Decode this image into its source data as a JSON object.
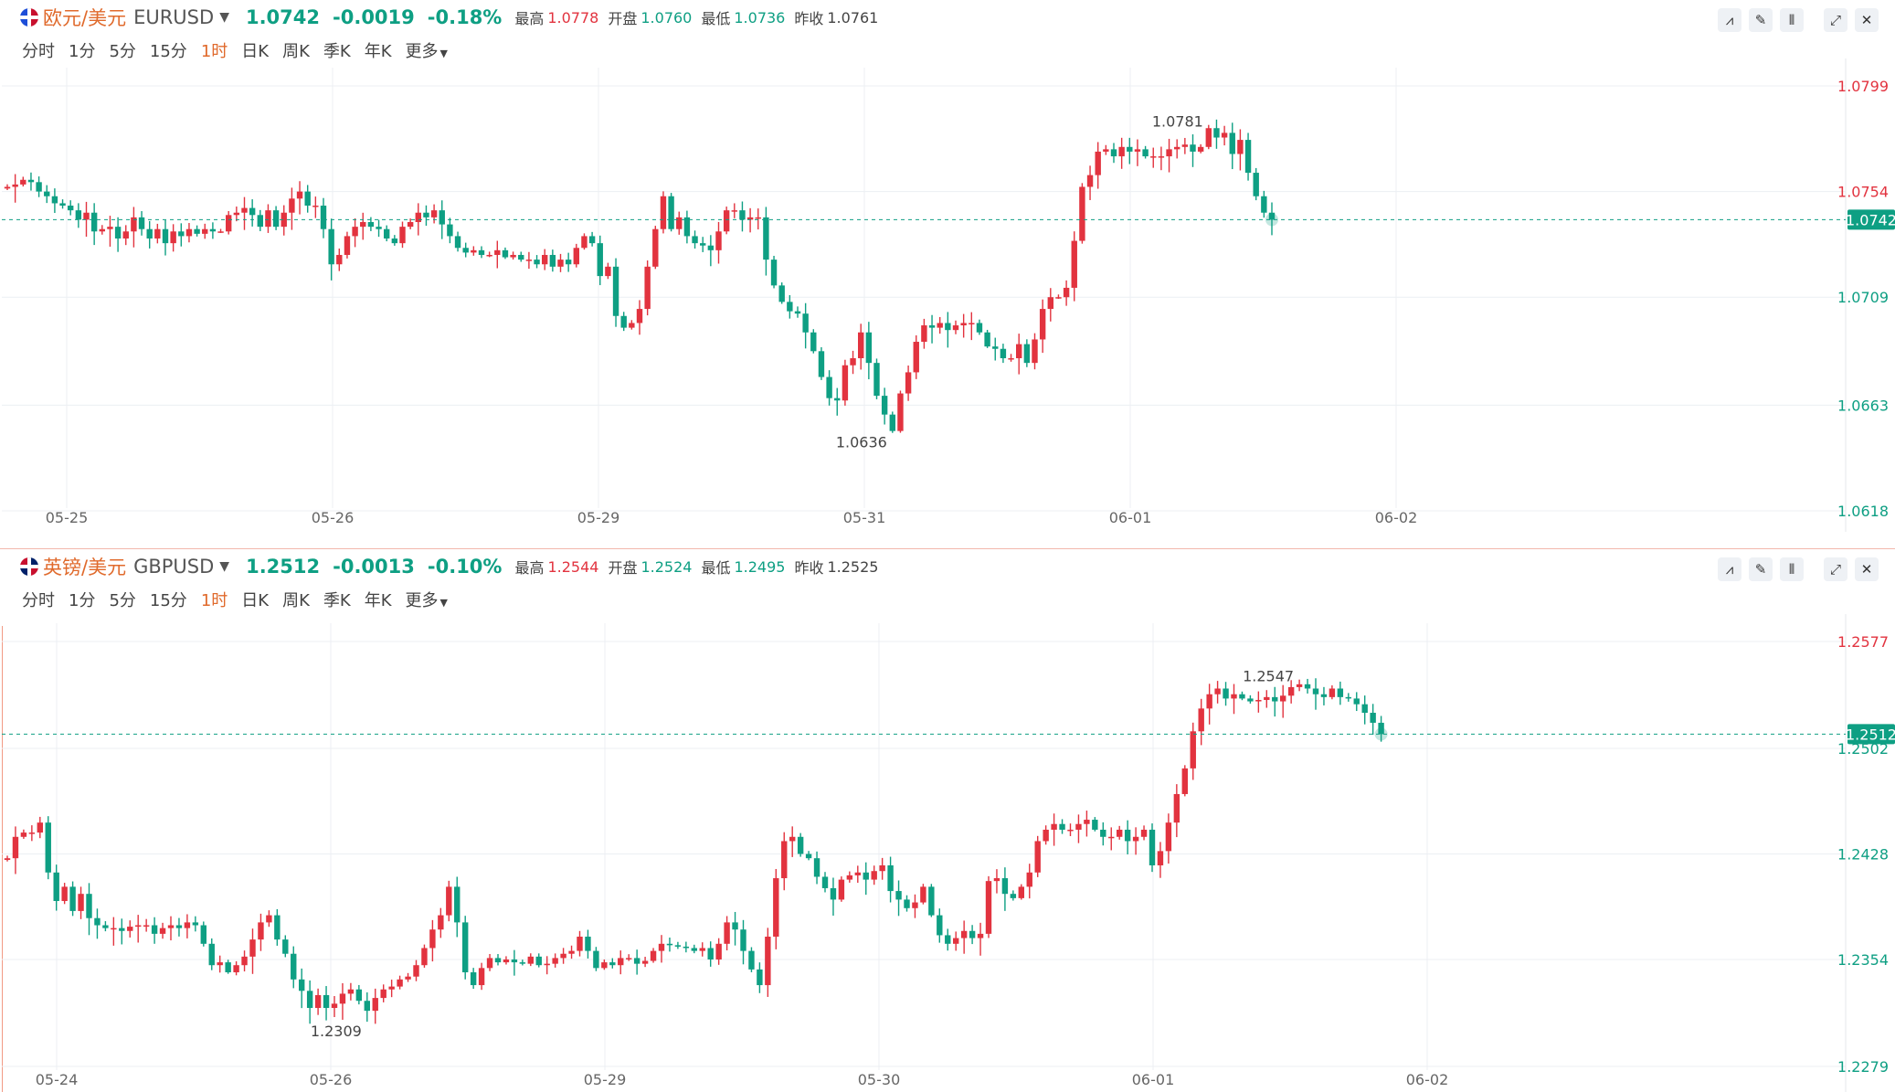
{
  "colors": {
    "up": "#e2333f",
    "down": "#0e9f83",
    "accent": "#e06a2c",
    "grid": "#eceff3",
    "current_line": "#0e9f83"
  },
  "panels": [
    {
      "flag": "eu-us-flag-icon",
      "pair_name": "欧元/美元",
      "symbol": "EURUSD",
      "price": "1.0742",
      "change": "-0.0019",
      "change_pct": "-0.18%",
      "stats": [
        {
          "label": "最高",
          "value": "1.0778",
          "tone": "red"
        },
        {
          "label": "开盘",
          "value": "1.0760",
          "tone": "green"
        },
        {
          "label": "最低",
          "value": "1.0736",
          "tone": "green"
        },
        {
          "label": "昨收",
          "value": "1.0761",
          "tone": "gray"
        }
      ],
      "timeframes": [
        "分时",
        "1分",
        "5分",
        "15分",
        "1时",
        "日K",
        "周K",
        "季K",
        "年K",
        "更多"
      ],
      "active_timeframe": "1时",
      "toolbar_icons": [
        "indicator-icon",
        "draw-icon",
        "candle-type-icon",
        "expand-icon",
        "close-icon"
      ]
    },
    {
      "flag": "gb-us-flag-icon",
      "pair_name": "英镑/美元",
      "symbol": "GBPUSD",
      "price": "1.2512",
      "change": "-0.0013",
      "change_pct": "-0.10%",
      "stats": [
        {
          "label": "最高",
          "value": "1.2544",
          "tone": "red"
        },
        {
          "label": "开盘",
          "value": "1.2524",
          "tone": "green"
        },
        {
          "label": "最低",
          "value": "1.2495",
          "tone": "green"
        },
        {
          "label": "昨收",
          "value": "1.2525",
          "tone": "gray"
        }
      ],
      "timeframes": [
        "分时",
        "1分",
        "5分",
        "15分",
        "1时",
        "日K",
        "周K",
        "季K",
        "年K",
        "更多"
      ],
      "active_timeframe": "1时",
      "toolbar_icons": [
        "indicator-icon",
        "draw-icon",
        "candle-type-icon",
        "expand-icon",
        "close-icon"
      ]
    }
  ],
  "chart_data": [
    {
      "type": "candlestick",
      "symbol": "EURUSD",
      "interval": "1h",
      "y_ticks": [
        "1.0799",
        "1.0754",
        "1.0709",
        "1.0663",
        "1.0618"
      ],
      "ylim": [
        1.0618,
        1.0799
      ],
      "x_ticks": [
        "05-25",
        "05-26",
        "05-29",
        "05-31",
        "06-01",
        "06-02"
      ],
      "current_price": "1.0742",
      "high_annotation": "1.0781",
      "low_annotation": "1.0636",
      "grid": true,
      "close_path": [
        1.0756,
        1.0757,
        1.0759,
        1.0758,
        1.0754,
        1.0752,
        1.0749,
        1.0748,
        1.0746,
        1.0742,
        1.0745,
        1.0737,
        1.0738,
        1.0739,
        1.0734,
        1.0737,
        1.0743,
        1.0738,
        1.0734,
        1.0738,
        1.0732,
        1.0737,
        1.0735,
        1.0738,
        1.0736,
        1.0738,
        1.0737,
        1.0737,
        1.0744,
        1.0745,
        1.0747,
        1.0744,
        1.0739,
        1.0746,
        1.0739,
        1.0745,
        1.0751,
        1.0754,
        1.0748,
        1.0748,
        1.0738,
        1.0723,
        1.0727,
        1.0735,
        1.0739,
        1.0741,
        1.0739,
        1.0738,
        1.0734,
        1.0732,
        1.0739,
        1.0741,
        1.0745,
        1.0743,
        1.0746,
        1.074,
        1.0735,
        1.073,
        1.0728,
        1.0729,
        1.0727,
        1.0727,
        1.0729,
        1.0726,
        1.0727,
        1.0725,
        1.0725,
        1.0723,
        1.0727,
        1.0722,
        1.0725,
        1.0723,
        1.073,
        1.0735,
        1.0732,
        1.0718,
        1.0722,
        1.0701,
        1.0696,
        1.0698,
        1.0704,
        1.0722,
        1.0738,
        1.0752,
        1.0738,
        1.0743,
        1.0735,
        1.0732,
        1.0731,
        1.0729,
        1.0737,
        1.0746,
        1.0746,
        1.0742,
        1.0743,
        1.0743,
        1.0725,
        1.0714,
        1.0707,
        1.0703,
        1.0702,
        1.0694,
        1.0686,
        1.0675,
        1.0666,
        1.0665,
        1.068,
        1.0683,
        1.0694,
        1.0681,
        1.0667,
        1.0659,
        1.0652,
        1.0668,
        1.0677,
        1.069,
        1.0697,
        1.0696,
        1.0698,
        1.0695,
        1.0697,
        1.0698,
        1.0698,
        1.0694,
        1.0688,
        1.0687,
        1.0683,
        1.0683,
        1.0689,
        1.0681,
        1.0691,
        1.0704,
        1.0709,
        1.0709,
        1.0713,
        1.0733,
        1.0756,
        1.0761,
        1.0771,
        1.0772,
        1.0769,
        1.0773,
        1.0771,
        1.0772,
        1.0769,
        1.0769,
        1.0769,
        1.0772,
        1.0773,
        1.0774,
        1.0771,
        1.0773,
        1.0781,
        1.0777,
        1.0779,
        1.077,
        1.0776,
        1.0762,
        1.0752,
        1.0745,
        1.0742
      ]
    },
    {
      "type": "candlestick",
      "symbol": "GBPUSD",
      "interval": "1h",
      "y_ticks": [
        "1.2577",
        "1.2502",
        "1.2428",
        "1.2354",
        "1.2279"
      ],
      "ylim": [
        1.2279,
        1.2577
      ],
      "x_ticks": [
        "05-24",
        "05-26",
        "05-29",
        "05-30",
        "06-01",
        "06-02"
      ],
      "current_price": "1.2512",
      "high_annotation": "1.2547",
      "low_annotation": "1.2309",
      "grid": true,
      "close_path": [
        1.2425,
        1.244,
        1.2443,
        1.2443,
        1.245,
        1.2415,
        1.2395,
        1.2405,
        1.2388,
        1.24,
        1.2383,
        1.2378,
        1.2376,
        1.2376,
        1.2374,
        1.2377,
        1.2378,
        1.2378,
        1.2372,
        1.2376,
        1.2378,
        1.2376,
        1.238,
        1.2378,
        1.2365,
        1.235,
        1.2352,
        1.2345,
        1.235,
        1.2356,
        1.2368,
        1.238,
        1.2385,
        1.2368,
        1.2358,
        1.234,
        1.2332,
        1.232,
        1.2329,
        1.232,
        1.2323,
        1.233,
        1.2333,
        1.2325,
        1.2318,
        1.2327,
        1.2333,
        1.2335,
        1.234,
        1.2342,
        1.235,
        1.2362,
        1.2375,
        1.2385,
        1.2405,
        1.238,
        1.2345,
        1.2336,
        1.2348,
        1.2355,
        1.2352,
        1.2354,
        1.2352,
        1.2351,
        1.2356,
        1.235,
        1.2351,
        1.2355,
        1.2358,
        1.236,
        1.237,
        1.236,
        1.2348,
        1.2352,
        1.235,
        1.2355,
        1.2355,
        1.2351,
        1.2353,
        1.236,
        1.2365,
        1.2364,
        1.2363,
        1.2362,
        1.236,
        1.2362,
        1.2354,
        1.2365,
        1.238,
        1.2375,
        1.236,
        1.2347,
        1.2336,
        1.237,
        1.2411,
        1.2437,
        1.244,
        1.2428,
        1.2425,
        1.2412,
        1.2404,
        1.2396,
        1.241,
        1.2413,
        1.2415,
        1.241,
        1.2416,
        1.242,
        1.2402,
        1.2396,
        1.239,
        1.2394,
        1.2405,
        1.2385,
        1.2371,
        1.2365,
        1.2369,
        1.2374,
        1.2369,
        1.2372,
        1.2409,
        1.2411,
        1.24,
        1.2397,
        1.2405,
        1.2415,
        1.2437,
        1.2445,
        1.2449,
        1.2445,
        1.2445,
        1.2449,
        1.2452,
        1.2445,
        1.244,
        1.244,
        1.2445,
        1.2437,
        1.244,
        1.2445,
        1.242,
        1.243,
        1.245,
        1.247,
        1.2488,
        1.2514,
        1.253,
        1.254,
        1.2544,
        1.2537,
        1.254,
        1.2537,
        1.2535,
        1.2536,
        1.2538,
        1.2535,
        1.2539,
        1.2545,
        1.2547,
        1.2544,
        1.254,
        1.2538,
        1.2544,
        1.2538,
        1.2537,
        1.2533,
        1.2527,
        1.252,
        1.2512
      ]
    }
  ]
}
